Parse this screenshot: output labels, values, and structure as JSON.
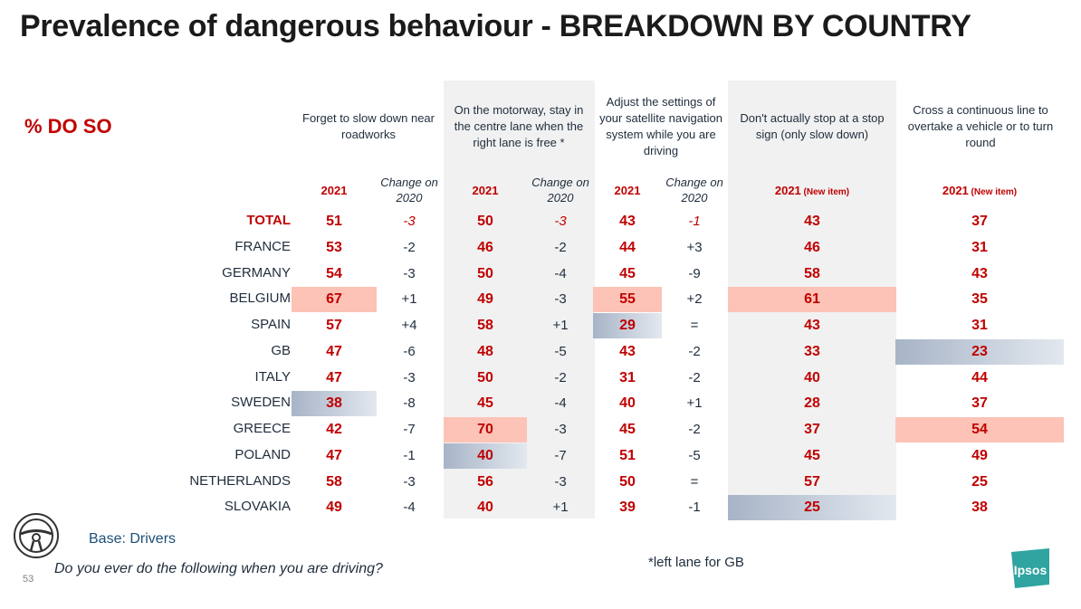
{
  "title": "Prevalence of dangerous behaviour - BREAKDOWN BY COUNTRY",
  "pct_label": "% DO SO",
  "base": "Base: Drivers",
  "question": "Do you ever do the following when you are driving?",
  "footnote": "*left lane for GB",
  "page_number": "53",
  "logo_text": "Ipsos",
  "icon": "steering-wheel-icon",
  "colors": {
    "accent": "#c00000",
    "highlight_high": "#fcc3b6",
    "highlight_low": "#a7b4c7",
    "shade": "#f1f1f1",
    "logo": "#2fa4a0"
  },
  "chart_data": {
    "type": "table",
    "title": "Prevalence of dangerous behaviour - BREAKDOWN BY COUNTRY",
    "rows": [
      "TOTAL",
      "FRANCE",
      "GERMANY",
      "BELGIUM",
      "SPAIN",
      "GB",
      "ITALY",
      "SWEDEN",
      "GREECE",
      "POLAND",
      "NETHERLANDS",
      "SLOVAKIA"
    ],
    "groups": [
      {
        "header": "Forget to slow down near roadworks",
        "year_label": "2021",
        "year_note": "",
        "change_label": "Change on 2020",
        "values": [
          "51",
          "53",
          "54",
          "67",
          "57",
          "47",
          "47",
          "38",
          "42",
          "47",
          "58",
          "49"
        ],
        "changes": [
          "-3",
          "-2",
          "-3",
          "+1",
          "+4",
          "-6",
          "-3",
          "-8",
          "-7",
          "-1",
          "-3",
          "-4"
        ],
        "highlights": [
          "",
          "",
          "",
          "high",
          "",
          "",
          "",
          "low",
          "",
          "",
          "",
          ""
        ]
      },
      {
        "header": "On the motorway, stay in the centre lane when the right lane is free *",
        "year_label": "2021",
        "year_note": "",
        "change_label": "Change on 2020",
        "values": [
          "50",
          "46",
          "50",
          "49",
          "58",
          "48",
          "50",
          "45",
          "70",
          "40",
          "56",
          "40"
        ],
        "changes": [
          "-3",
          "-2",
          "-4",
          "-3",
          "+1",
          "-5",
          "-2",
          "-4",
          "-3",
          "-7",
          "-3",
          "+1"
        ],
        "highlights": [
          "",
          "",
          "",
          "",
          "",
          "",
          "",
          "",
          "high",
          "low",
          "",
          ""
        ]
      },
      {
        "header": "Adjust the settings of your satellite navigation system while you are driving",
        "year_label": "2021",
        "year_note": "",
        "change_label": "Change on 2020",
        "values": [
          "43",
          "44",
          "45",
          "55",
          "29",
          "43",
          "31",
          "40",
          "45",
          "51",
          "50",
          "39"
        ],
        "changes": [
          "-1",
          "+3",
          "-9",
          "+2",
          "=",
          "-2",
          "-2",
          "+1",
          "-2",
          "-5",
          "=",
          "-1"
        ],
        "highlights": [
          "",
          "",
          "",
          "high",
          "low",
          "",
          "",
          "",
          "",
          "",
          "",
          ""
        ]
      },
      {
        "header": "Don't actually stop at a stop sign (only slow down)",
        "year_label": "2021",
        "year_note": "(New item)",
        "values": [
          "43",
          "46",
          "58",
          "61",
          "43",
          "33",
          "40",
          "28",
          "37",
          "45",
          "57",
          "25"
        ],
        "highlights": [
          "",
          "",
          "",
          "high",
          "",
          "",
          "",
          "",
          "",
          "",
          "",
          "low"
        ]
      },
      {
        "header": "Cross a continuous line to overtake a vehicle or to turn round",
        "year_label": "2021",
        "year_note": "(New item)",
        "values": [
          "37",
          "31",
          "43",
          "35",
          "31",
          "23",
          "44",
          "37",
          "54",
          "49",
          "25",
          "38"
        ],
        "highlights": [
          "",
          "",
          "",
          "",
          "",
          "low",
          "",
          "",
          "high",
          "",
          "",
          ""
        ]
      }
    ]
  }
}
